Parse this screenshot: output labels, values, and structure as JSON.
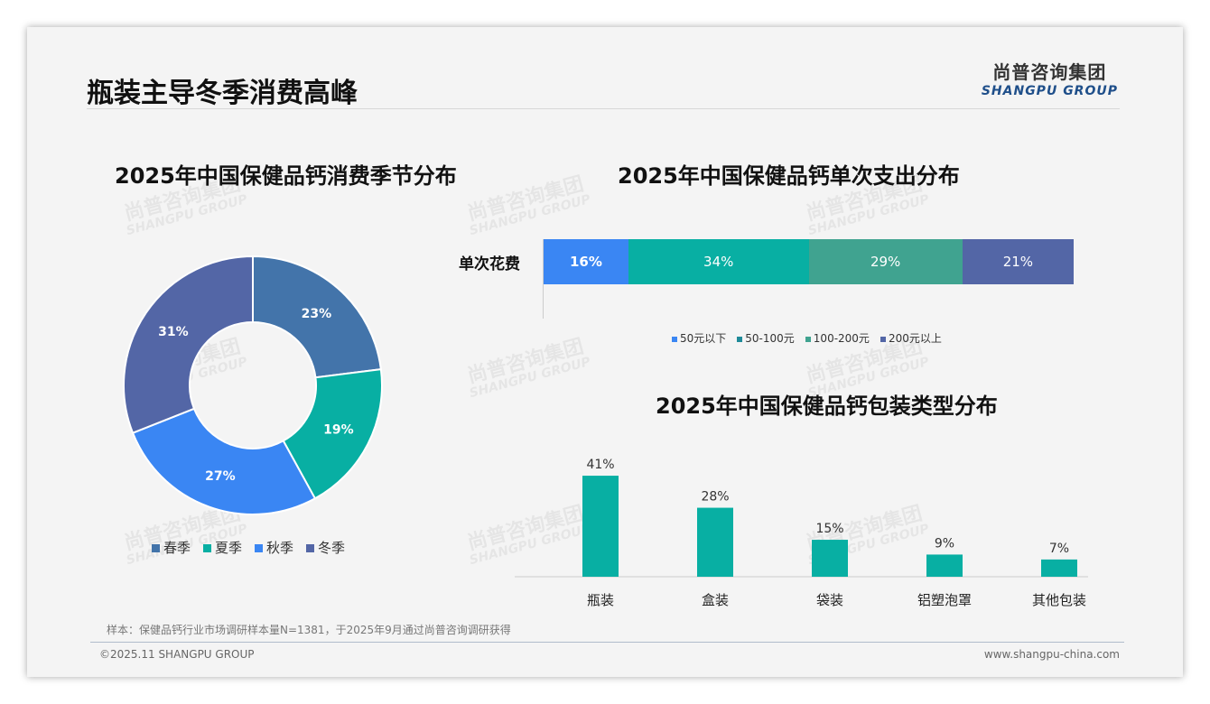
{
  "header": {
    "title": "瓶装主导冬季消费高峰",
    "logo_cn": "尚普咨询集团",
    "logo_en": "SHANGPU GROUP"
  },
  "watermark": {
    "cn": "尚普咨询集团",
    "en": "SHANGPU GROUP"
  },
  "chart_data": [
    {
      "type": "pie",
      "title": "2025年中国保健品钙消费季节分布",
      "categories": [
        "春季",
        "夏季",
        "秋季",
        "冬季"
      ],
      "values": [
        23,
        19,
        27,
        31
      ],
      "labels": [
        "23%",
        "19%",
        "27%",
        "31%"
      ],
      "colors": [
        "#4374aa",
        "#08afa3",
        "#3a86f3",
        "#5366a6"
      ],
      "legend": "bottom"
    },
    {
      "type": "bar",
      "orientation": "horizontal-stacked",
      "title": "2025年中国保健品钙单次支出分布",
      "category": "单次花费",
      "series": [
        {
          "name": "50元以下",
          "value": 16,
          "label": "16%",
          "color": "#3a86f3"
        },
        {
          "name": "50-100元",
          "value": 34,
          "label": "34%",
          "color": "#08afa3"
        },
        {
          "name": "100-200元",
          "value": 29,
          "label": "29%",
          "color": "#40a390"
        },
        {
          "name": "200元以上",
          "value": 21,
          "label": "21%",
          "color": "#5366a6"
        }
      ],
      "legend": "bottom"
    },
    {
      "type": "bar",
      "title": "2025年中国保健品钙包装类型分布",
      "categories": [
        "瓶装",
        "盒装",
        "袋装",
        "铝塑泡罩",
        "其他包装"
      ],
      "values": [
        41,
        28,
        15,
        9,
        7
      ],
      "labels": [
        "41%",
        "28%",
        "15%",
        "9%",
        "7%"
      ],
      "color": "#08afa3",
      "ylim": [
        0,
        45
      ]
    }
  ],
  "footer": {
    "note": "样本：保健品钙行业市场调研样本量N=1381，于2025年9月通过尚普咨询调研获得",
    "copyright": "©2025.11 SHANGPU GROUP",
    "url": "www.shangpu-china.com"
  }
}
